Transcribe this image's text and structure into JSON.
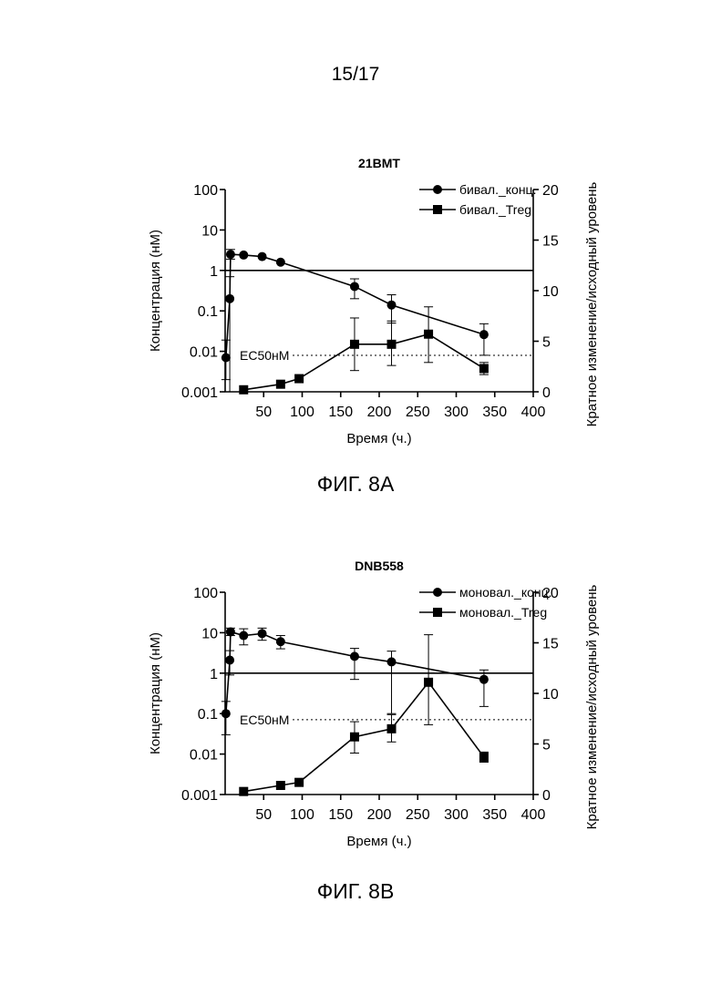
{
  "page": {
    "number": "15/17"
  },
  "figures": [
    {
      "caption": "ФИГ. 8А"
    },
    {
      "caption": "ФИГ. 8В"
    }
  ],
  "chart_data": [
    {
      "type": "line",
      "title": "21BMT",
      "xlabel": "Время (ч.)",
      "ylabel": "Концентрация (нМ)",
      "y2label": "Кратное изменение/исходный уровень",
      "xlim": [
        0,
        400
      ],
      "x_ticks": [
        50,
        100,
        150,
        200,
        250,
        300,
        350,
        400
      ],
      "ylim": [
        0.001,
        100
      ],
      "yscale": "log",
      "y_ticks": [
        0.001,
        0.01,
        0.1,
        1,
        10,
        100
      ],
      "y_tick_labels": [
        "0.001",
        "0.01",
        "0.1",
        "1",
        "10",
        "100"
      ],
      "y2lim": [
        0,
        20
      ],
      "y2_ticks": [
        0,
        5,
        10,
        15,
        20
      ],
      "reference_lines": [
        {
          "label": "",
          "axis": "left",
          "y": 1,
          "style": "solid"
        },
        {
          "label": "EC50нМ",
          "axis": "right",
          "y": 3.6,
          "style": "dotted"
        }
      ],
      "legend_position": "top-right",
      "series": [
        {
          "name": "бивал._конц.",
          "axis": "left",
          "marker": "circle",
          "x": [
            1,
            6,
            7,
            24,
            48,
            72,
            168,
            216,
            336
          ],
          "y": [
            0.007,
            0.2,
            2.5,
            2.4,
            2.2,
            1.6,
            0.4,
            0.14,
            0.026
          ],
          "err_low": [
            0.005,
            0.5,
            0.6,
            0,
            0,
            0,
            0.2,
            0.09,
            0.018
          ],
          "err_high": [
            0.012,
            0.5,
            0.8,
            0,
            0,
            0,
            0.22,
            0.11,
            0.022
          ]
        },
        {
          "name": "бивал._Treg",
          "axis": "right",
          "marker": "square",
          "x": [
            24,
            72,
            96,
            168,
            216,
            264,
            336
          ],
          "y": [
            0.2,
            0.75,
            1.3,
            4.7,
            4.7,
            5.7,
            2.3
          ],
          "err_low": [
            0,
            0,
            0,
            2.6,
            2.1,
            2.8,
            0.6
          ],
          "err_high": [
            0,
            0,
            0,
            2.6,
            2.3,
            2.7,
            0.6
          ]
        }
      ]
    },
    {
      "type": "line",
      "title": "DNB558",
      "xlabel": "Время (ч.)",
      "ylabel": "Концентрация (нМ)",
      "y2label": "Кратное изменение/исходный уровень",
      "xlim": [
        0,
        400
      ],
      "x_ticks": [
        50,
        100,
        150,
        200,
        250,
        300,
        350,
        400
      ],
      "ylim": [
        0.001,
        100
      ],
      "yscale": "log",
      "y_ticks": [
        0.001,
        0.01,
        0.1,
        1,
        10,
        100
      ],
      "y_tick_labels": [
        "0.001",
        "0.01",
        "0.1",
        "1",
        "10",
        "100"
      ],
      "y2lim": [
        0,
        20
      ],
      "y2_ticks": [
        0,
        5,
        10,
        15,
        20
      ],
      "reference_lines": [
        {
          "label": "",
          "axis": "left",
          "y": 1,
          "style": "solid"
        },
        {
          "label": "EC50нМ",
          "axis": "right",
          "y": 7.4,
          "style": "dotted"
        }
      ],
      "legend_position": "top-right",
      "series": [
        {
          "name": "моновал._конц.",
          "axis": "left",
          "marker": "circle",
          "x": [
            1,
            6,
            7,
            24,
            48,
            72,
            168,
            216,
            336
          ],
          "y": [
            0.1,
            2.1,
            10.5,
            8.5,
            9.5,
            6.0,
            2.6,
            1.9,
            0.7
          ],
          "err_low": [
            0.07,
            1.2,
            2.0,
            3.5,
            3.0,
            2.0,
            1.9,
            1.8,
            0.55
          ],
          "err_high": [
            0.1,
            1.5,
            2.5,
            4.0,
            3.5,
            2.5,
            1.5,
            1.6,
            0.5
          ]
        },
        {
          "name": "моновал._Treg",
          "axis": "right",
          "marker": "square",
          "x": [
            24,
            72,
            96,
            168,
            216,
            264,
            336
          ],
          "y": [
            0.3,
            0.9,
            1.2,
            5.7,
            6.5,
            11.1,
            3.7
          ],
          "err_low": [
            0,
            0,
            0,
            1.6,
            1.3,
            4.2,
            0.5
          ],
          "err_high": [
            0,
            0,
            0,
            1.5,
            1.4,
            4.7,
            0.5
          ]
        }
      ]
    }
  ]
}
